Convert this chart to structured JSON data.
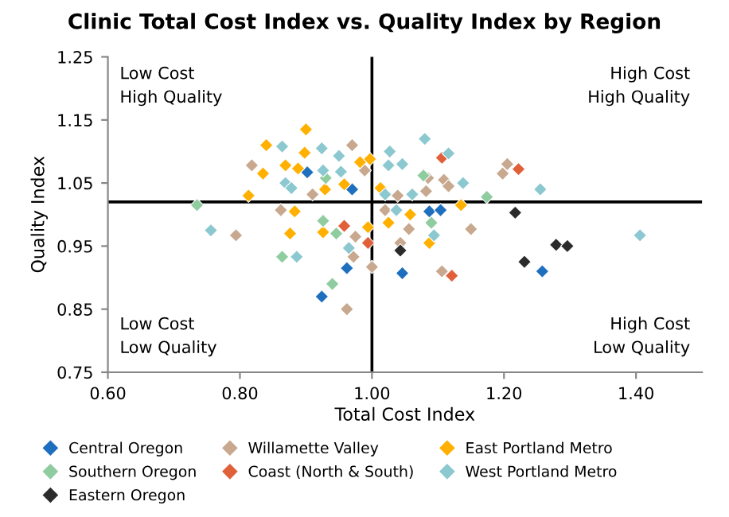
{
  "chart_data": {
    "type": "scatter",
    "title": "Clinic Total Cost Index vs. Quality Index by Region",
    "xlabel": "Total Cost Index",
    "ylabel": "Quality Index",
    "xlim": [
      0.6,
      1.5
    ],
    "xticks": [
      {
        "value": 0.6,
        "label": "0.60"
      },
      {
        "value": 0.8,
        "label": "0.80"
      },
      {
        "value": 1.0,
        "label": "1.00"
      },
      {
        "value": 1.2,
        "label": "1.20"
      },
      {
        "value": 1.4,
        "label": "1.40"
      }
    ],
    "ylim": [
      0.75,
      1.25
    ],
    "yticks": [
      {
        "value": 0.75,
        "label": "0.75"
      },
      {
        "value": 0.85,
        "label": "0.85"
      },
      {
        "value": 0.95,
        "label": "0.95"
      },
      {
        "value": 1.05,
        "label": "1.05"
      },
      {
        "value": 1.15,
        "label": "1.15"
      },
      {
        "value": 1.25,
        "label": "1.25"
      }
    ],
    "ref_lines": [
      {
        "axis": "x",
        "value": 1.0,
        "color": "#000000"
      },
      {
        "axis": "y",
        "value": 1.02,
        "color": "#000000"
      }
    ],
    "annotations": [
      "Low Cost\nHigh Quality",
      "High Cost\nHigh Quality",
      "Low Cost\nLow Quality",
      "High Cost\nLow Quality"
    ],
    "marker": "diamond",
    "legend": "bottom",
    "grid": false,
    "series": [
      {
        "name": "Central Oregon",
        "color": "#1f6fbf",
        "x": [
          0.902,
          0.97,
          1.087,
          1.104,
          0.962,
          0.924,
          1.046,
          1.258
        ],
        "values": [
          1.067,
          1.04,
          1.005,
          1.007,
          0.915,
          0.87,
          0.907,
          0.91
        ]
      },
      {
        "name": "Willamette Valley",
        "color": "#c8a88e",
        "x": [
          0.97,
          0.818,
          0.862,
          0.989,
          0.91,
          0.794,
          0.975,
          0.972,
          0.962,
          1.0,
          1.205,
          1.198,
          1.085,
          1.109,
          1.116,
          1.082,
          1.02,
          1.039,
          1.056,
          1.15,
          1.106,
          1.043
        ],
        "values": [
          1.11,
          1.078,
          1.007,
          1.07,
          1.032,
          0.967,
          0.965,
          0.933,
          0.85,
          0.917,
          1.08,
          1.065,
          1.058,
          1.055,
          1.045,
          1.037,
          1.007,
          1.03,
          0.977,
          0.977,
          0.91,
          0.955
        ]
      },
      {
        "name": "East Portland Metro",
        "color": "#ffb000",
        "x": [
          0.9,
          0.84,
          0.898,
          0.835,
          0.869,
          0.888,
          0.813,
          0.929,
          0.958,
          0.982,
          0.997,
          0.883,
          0.876,
          0.994,
          0.926,
          1.135,
          1.025,
          1.058,
          1.013,
          1.087
        ],
        "values": [
          1.135,
          1.11,
          1.098,
          1.065,
          1.078,
          1.073,
          1.03,
          1.04,
          1.048,
          1.083,
          1.088,
          1.005,
          0.97,
          0.98,
          0.972,
          1.015,
          0.987,
          1.0,
          1.042,
          0.955
        ]
      },
      {
        "name": "Southern Oregon",
        "color": "#8fcc9f",
        "x": [
          0.735,
          0.864,
          0.94,
          1.174,
          1.09,
          0.93,
          0.926,
          0.946,
          1.078
        ],
        "values": [
          1.015,
          0.933,
          0.89,
          1.028,
          0.987,
          1.058,
          0.99,
          0.97,
          1.062
        ]
      },
      {
        "name": "Coast (North & South)",
        "color": "#e0603a",
        "x": [
          1.106,
          1.222,
          1.121,
          0.994,
          0.958
        ],
        "values": [
          1.09,
          1.072,
          0.903,
          0.955,
          0.982
        ]
      },
      {
        "name": "West Portland Metro",
        "color": "#8cc8d0",
        "x": [
          0.864,
          0.924,
          0.95,
          0.869,
          0.878,
          0.953,
          0.926,
          1.08,
          1.027,
          1.025,
          1.046,
          1.116,
          1.138,
          1.061,
          1.02,
          1.037,
          1.255,
          1.406,
          1.094,
          0.756,
          0.886,
          0.965
        ],
        "values": [
          1.108,
          1.105,
          1.093,
          1.05,
          1.042,
          1.068,
          1.07,
          1.12,
          1.1,
          1.078,
          1.08,
          1.097,
          1.05,
          1.032,
          1.032,
          1.007,
          1.04,
          0.967,
          0.967,
          0.975,
          0.933,
          0.947
        ]
      },
      {
        "name": "Eastern Oregon",
        "color": "#2b2b2b",
        "x": [
          1.217,
          1.043,
          1.231,
          1.279,
          1.296
        ],
        "values": [
          1.003,
          0.943,
          0.925,
          0.952,
          0.95
        ]
      }
    ]
  }
}
